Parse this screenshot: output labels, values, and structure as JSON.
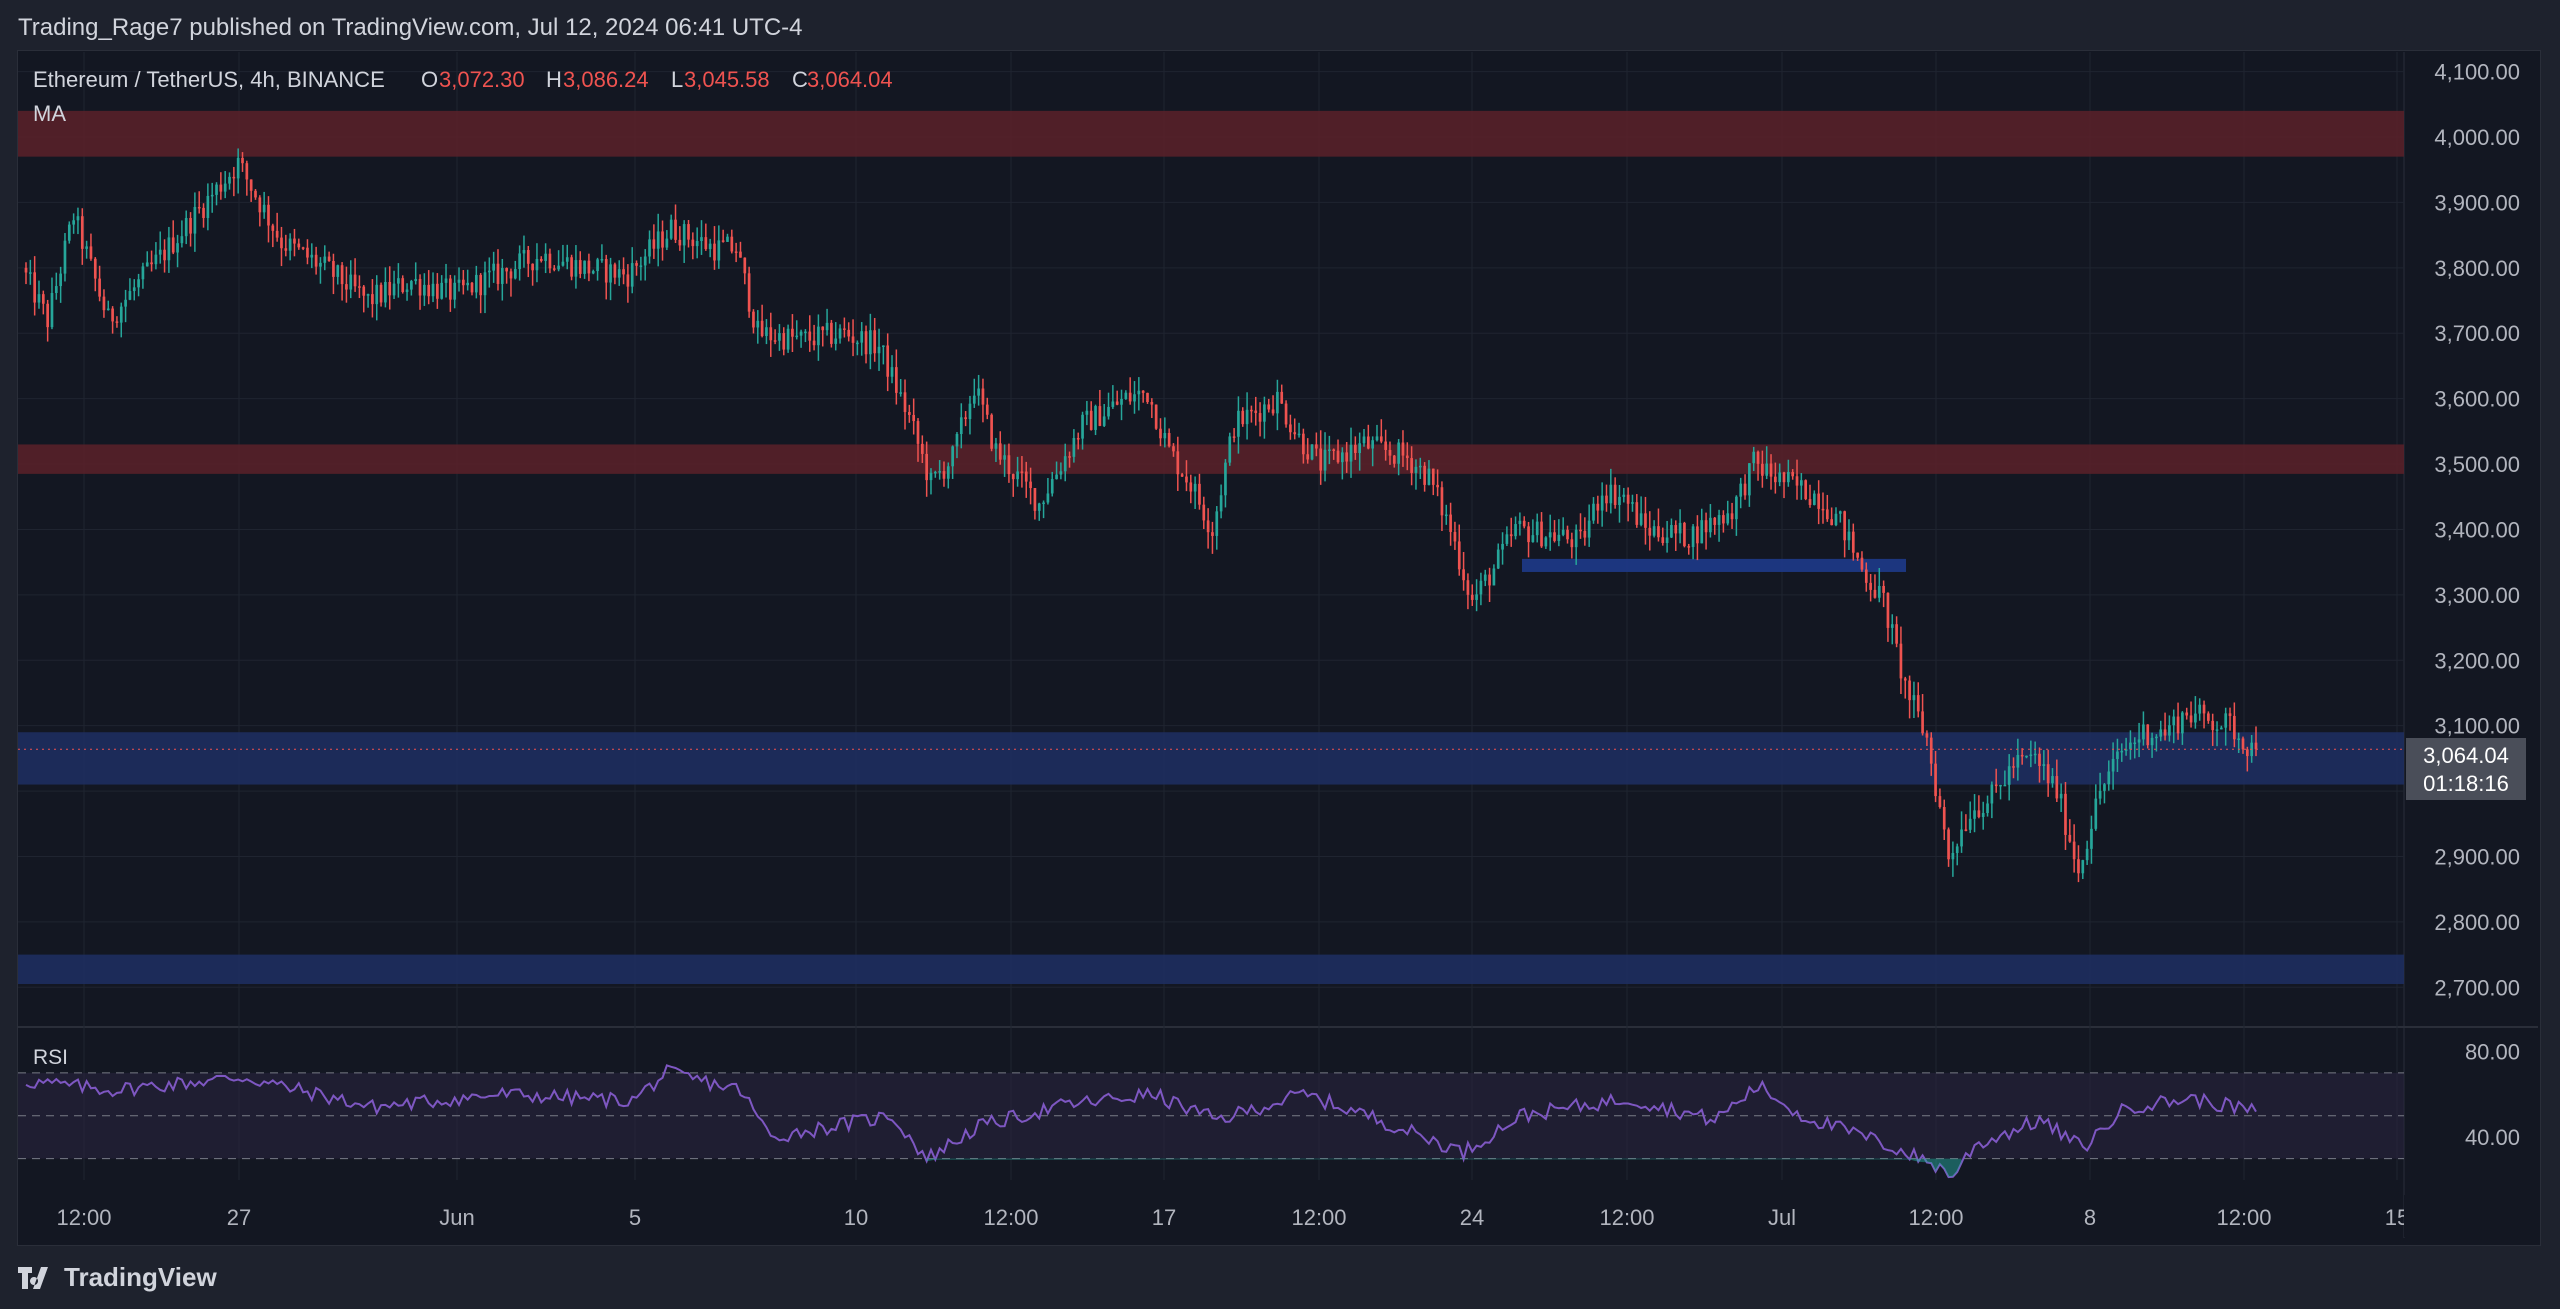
{
  "header": {
    "published": "Trading_Rage7 published on TradingView.com, Jul 12, 2024 06:41 UTC-4"
  },
  "legend": {
    "symbol": "Ethereum / TetherUS, 4h, BINANCE",
    "o_label": "O",
    "o": "3,072.30",
    "h_label": "H",
    "h": "3,086.24",
    "l_label": "L",
    "l": "3,045.58",
    "c_label": "C",
    "c": "3,064.04",
    "ma": "MA"
  },
  "price_axis": {
    "ticks": [
      "4,100.00",
      "4,000.00",
      "3,900.00",
      "3,800.00",
      "3,700.00",
      "3,600.00",
      "3,500.00",
      "3,400.00",
      "3,300.00",
      "3,200.00",
      "3,100.00",
      "2,900.00",
      "2,800.00",
      "2,700.00"
    ],
    "last_price": "3,064.04",
    "countdown": "01:18:16"
  },
  "rsi": {
    "label": "RSI",
    "ticks": [
      "80.00",
      "40.00"
    ]
  },
  "time_axis": {
    "labels": [
      "12:00",
      "27",
      "Jun",
      "5",
      "10",
      "12:00",
      "17",
      "12:00",
      "24",
      "12:00",
      "Jul",
      "12:00",
      "8",
      "12:00",
      "15"
    ]
  },
  "footer": {
    "brand": "TradingView"
  },
  "colors": {
    "background": "#131722",
    "up": "#26a69a",
    "down": "#ef5350",
    "resistance_zone": "#5c2129",
    "support_zone": "#1e2f63",
    "rsi_line": "#7e57c2",
    "rsi_band": "#2a2440"
  },
  "chart_data": [
    {
      "type": "candlestick",
      "title": "Ethereum / TetherUS, 4h, BINANCE",
      "ylim": [
        2650,
        4130
      ],
      "y_ticks": [
        2700,
        2800,
        2900,
        3000,
        3100,
        3200,
        3300,
        3400,
        3500,
        3600,
        3700,
        3800,
        3900,
        4000,
        4100
      ],
      "last_close": 3064.04,
      "zones": [
        {
          "kind": "resistance",
          "from": 3970,
          "to": 4040
        },
        {
          "kind": "resistance",
          "from": 3485,
          "to": 3530
        },
        {
          "kind": "support",
          "from": 3335,
          "to": 3355,
          "partial": true
        },
        {
          "kind": "support",
          "from": 3010,
          "to": 3090
        },
        {
          "kind": "support",
          "from": 2705,
          "to": 2750
        }
      ],
      "path_anchors": [
        [
          0,
          3800
        ],
        [
          6,
          3720
        ],
        [
          12,
          3880
        ],
        [
          20,
          3720
        ],
        [
          30,
          3800
        ],
        [
          40,
          3880
        ],
        [
          50,
          3960
        ],
        [
          60,
          3840
        ],
        [
          70,
          3800
        ],
        [
          80,
          3750
        ],
        [
          90,
          3780
        ],
        [
          100,
          3760
        ],
        [
          110,
          3790
        ],
        [
          120,
          3820
        ],
        [
          130,
          3800
        ],
        [
          140,
          3790
        ],
        [
          150,
          3860
        ],
        [
          160,
          3830
        ],
        [
          165,
          3830
        ],
        [
          170,
          3700
        ],
        [
          180,
          3690
        ],
        [
          190,
          3700
        ],
        [
          198,
          3680
        ],
        [
          205,
          3570
        ],
        [
          210,
          3470
        ],
        [
          215,
          3510
        ],
        [
          220,
          3620
        ],
        [
          225,
          3520
        ],
        [
          235,
          3440
        ],
        [
          245,
          3560
        ],
        [
          255,
          3600
        ],
        [
          260,
          3610
        ],
        [
          265,
          3520
        ],
        [
          270,
          3470
        ],
        [
          275,
          3400
        ],
        [
          280,
          3560
        ],
        [
          290,
          3600
        ],
        [
          295,
          3540
        ],
        [
          300,
          3500
        ],
        [
          310,
          3530
        ],
        [
          320,
          3510
        ],
        [
          325,
          3480
        ],
        [
          330,
          3400
        ],
        [
          335,
          3290
        ],
        [
          340,
          3340
        ],
        [
          345,
          3400
        ],
        [
          355,
          3390
        ],
        [
          360,
          3380
        ],
        [
          365,
          3460
        ],
        [
          370,
          3450
        ],
        [
          375,
          3400
        ],
        [
          385,
          3390
        ],
        [
          395,
          3430
        ],
        [
          400,
          3500
        ],
        [
          405,
          3480
        ],
        [
          415,
          3450
        ],
        [
          420,
          3410
        ],
        [
          425,
          3340
        ],
        [
          430,
          3290
        ],
        [
          435,
          3160
        ],
        [
          440,
          3080
        ],
        [
          445,
          2900
        ],
        [
          450,
          2970
        ],
        [
          455,
          2990
        ],
        [
          460,
          3040
        ],
        [
          465,
          3050
        ],
        [
          470,
          3000
        ],
        [
          475,
          2880
        ],
        [
          480,
          3000
        ],
        [
          485,
          3060
        ],
        [
          490,
          3090
        ],
        [
          495,
          3090
        ],
        [
          500,
          3120
        ],
        [
          505,
          3110
        ],
        [
          510,
          3100
        ],
        [
          515,
          3064
        ]
      ],
      "candle_count": 516
    },
    {
      "type": "line",
      "title": "RSI",
      "ylim": [
        20,
        90
      ],
      "y_ticks": [
        40,
        80
      ],
      "bands": [
        30,
        50,
        70
      ],
      "path_anchors": [
        [
          0,
          66
        ],
        [
          20,
          62
        ],
        [
          50,
          68
        ],
        [
          80,
          54
        ],
        [
          110,
          60
        ],
        [
          140,
          57
        ],
        [
          148,
          70
        ],
        [
          165,
          62
        ],
        [
          172,
          40
        ],
        [
          200,
          50
        ],
        [
          208,
          30
        ],
        [
          220,
          45
        ],
        [
          240,
          55
        ],
        [
          260,
          60
        ],
        [
          275,
          48
        ],
        [
          295,
          60
        ],
        [
          310,
          50
        ],
        [
          332,
          33
        ],
        [
          345,
          50
        ],
        [
          370,
          58
        ],
        [
          390,
          48
        ],
        [
          400,
          64
        ],
        [
          410,
          50
        ],
        [
          425,
          40
        ],
        [
          440,
          28
        ],
        [
          445,
          22
        ],
        [
          450,
          36
        ],
        [
          465,
          48
        ],
        [
          475,
          35
        ],
        [
          485,
          54
        ],
        [
          500,
          58
        ],
        [
          515,
          52
        ]
      ]
    }
  ]
}
